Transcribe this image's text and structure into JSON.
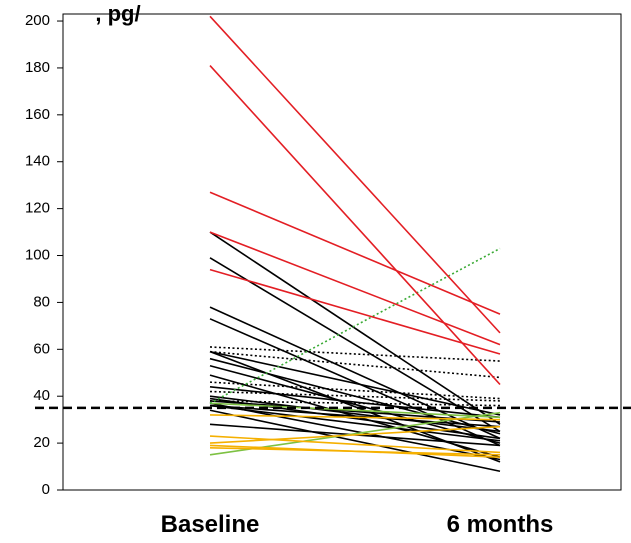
{
  "chart_data": {
    "type": "line",
    "title": ", pg/",
    "categories": [
      "Baseline",
      "6 months"
    ],
    "yticks": [
      0,
      20,
      40,
      60,
      80,
      100,
      120,
      140,
      160,
      180,
      200
    ],
    "ylim": [
      0,
      203
    ],
    "reference_line": {
      "y": 35,
      "style": "dashed",
      "color": "#000000"
    },
    "grid": false,
    "colors": {
      "red": "#e31e24",
      "black": "#000000",
      "orange": "#f5b000",
      "green": "#7dc142",
      "green_dotted": "#3aaa35"
    },
    "series": [
      {
        "values": [
          202,
          67
        ],
        "color": "red",
        "style": "solid"
      },
      {
        "values": [
          181,
          45
        ],
        "color": "red",
        "style": "solid"
      },
      {
        "values": [
          127,
          75
        ],
        "color": "red",
        "style": "solid"
      },
      {
        "values": [
          110,
          62
        ],
        "color": "red",
        "style": "solid"
      },
      {
        "values": [
          94,
          58
        ],
        "color": "red",
        "style": "solid"
      },
      {
        "values": [
          110,
          28
        ],
        "color": "black",
        "style": "solid"
      },
      {
        "values": [
          99,
          25
        ],
        "color": "black",
        "style": "solid"
      },
      {
        "values": [
          78,
          22
        ],
        "color": "black",
        "style": "solid"
      },
      {
        "values": [
          73,
          19
        ],
        "color": "black",
        "style": "solid"
      },
      {
        "values": [
          59,
          32
        ],
        "color": "black",
        "style": "solid"
      },
      {
        "values": [
          59,
          12
        ],
        "color": "black",
        "style": "solid"
      },
      {
        "values": [
          56,
          24
        ],
        "color": "black",
        "style": "solid"
      },
      {
        "values": [
          53,
          20
        ],
        "color": "black",
        "style": "solid"
      },
      {
        "values": [
          49,
          14
        ],
        "color": "black",
        "style": "solid"
      },
      {
        "values": [
          44,
          31
        ],
        "color": "black",
        "style": "solid"
      },
      {
        "values": [
          40,
          25
        ],
        "color": "black",
        "style": "solid"
      },
      {
        "values": [
          39,
          22
        ],
        "color": "black",
        "style": "solid"
      },
      {
        "values": [
          38,
          29
        ],
        "color": "black",
        "style": "solid"
      },
      {
        "values": [
          37,
          13
        ],
        "color": "black",
        "style": "solid"
      },
      {
        "values": [
          36,
          21
        ],
        "color": "black",
        "style": "solid"
      },
      {
        "values": [
          36,
          27
        ],
        "color": "black",
        "style": "solid"
      },
      {
        "values": [
          34,
          8
        ],
        "color": "black",
        "style": "solid"
      },
      {
        "values": [
          28,
          19
        ],
        "color": "black",
        "style": "solid"
      },
      {
        "values": [
          61,
          55
        ],
        "color": "black",
        "style": "dotted"
      },
      {
        "values": [
          59,
          48
        ],
        "color": "black",
        "style": "dotted"
      },
      {
        "values": [
          46,
          39
        ],
        "color": "black",
        "style": "dotted"
      },
      {
        "values": [
          42,
          38
        ],
        "color": "black",
        "style": "dotted"
      },
      {
        "values": [
          38,
          36
        ],
        "color": "black",
        "style": "dotted"
      },
      {
        "values": [
          37,
          103
        ],
        "color": "green_dotted",
        "style": "dotted"
      },
      {
        "values": [
          15,
          33
        ],
        "color": "green",
        "style": "solid"
      },
      {
        "values": [
          37,
          31
        ],
        "color": "green",
        "style": "solid"
      },
      {
        "values": [
          32,
          30
        ],
        "color": "orange",
        "style": "solid"
      },
      {
        "values": [
          23,
          16
        ],
        "color": "orange",
        "style": "solid"
      },
      {
        "values": [
          20,
          27
        ],
        "color": "orange",
        "style": "solid"
      },
      {
        "values": [
          19,
          14
        ],
        "color": "orange",
        "style": "solid"
      },
      {
        "values": [
          18,
          15
        ],
        "color": "orange",
        "style": "solid"
      }
    ]
  }
}
